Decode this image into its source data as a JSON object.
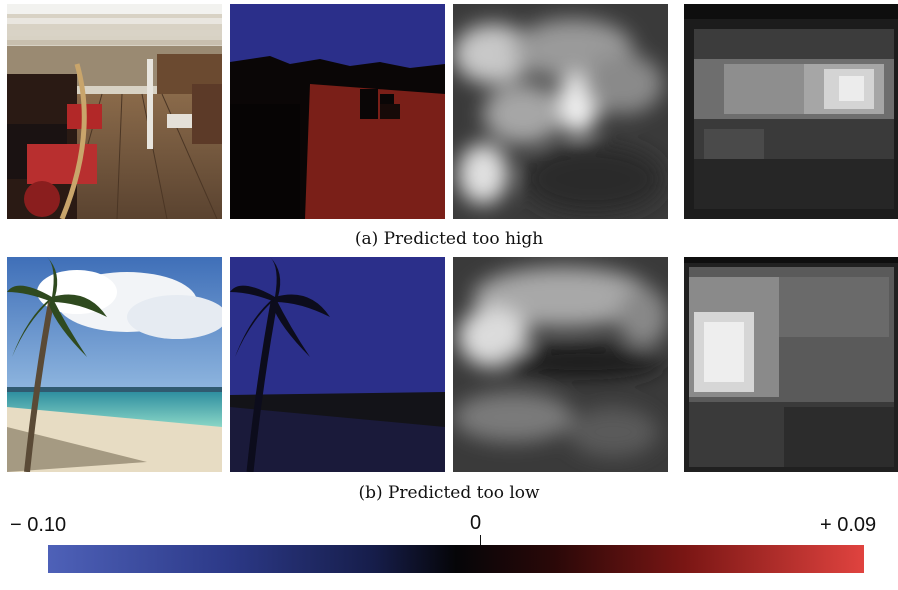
{
  "captions": {
    "a": "(a) Predicted too high",
    "b": "(b) Predicted too low"
  },
  "colorbar": {
    "min_label": "− 0.10",
    "mid_label": "0",
    "max_label": "+ 0.09",
    "colors": {
      "negative": "#4e61b8",
      "zero": "#050508",
      "positive": "#e0433f"
    }
  }
}
